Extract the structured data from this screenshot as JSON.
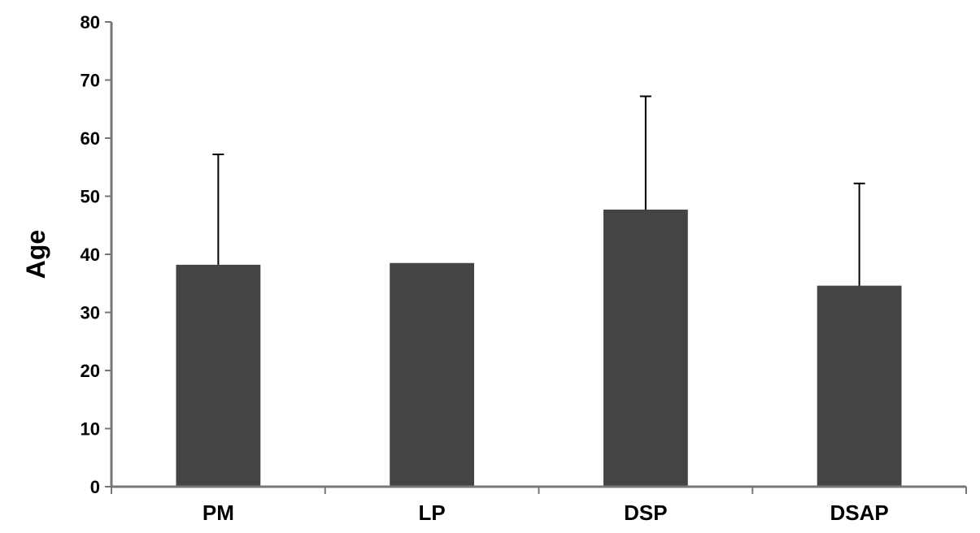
{
  "chart_data": {
    "type": "bar",
    "title": "",
    "xlabel": "",
    "ylabel": "Age",
    "ylim": [
      0,
      80
    ],
    "yticks": [
      0,
      10,
      20,
      30,
      40,
      50,
      60,
      70,
      80
    ],
    "grid": false,
    "legend": "none",
    "categories": [
      "PM",
      "LP",
      "DSP",
      "DSAP"
    ],
    "values": [
      38.2,
      38.5,
      47.7,
      34.6
    ],
    "error_upper": [
      57.2,
      null,
      67.2,
      52.2
    ],
    "bar_color": "#444444"
  }
}
